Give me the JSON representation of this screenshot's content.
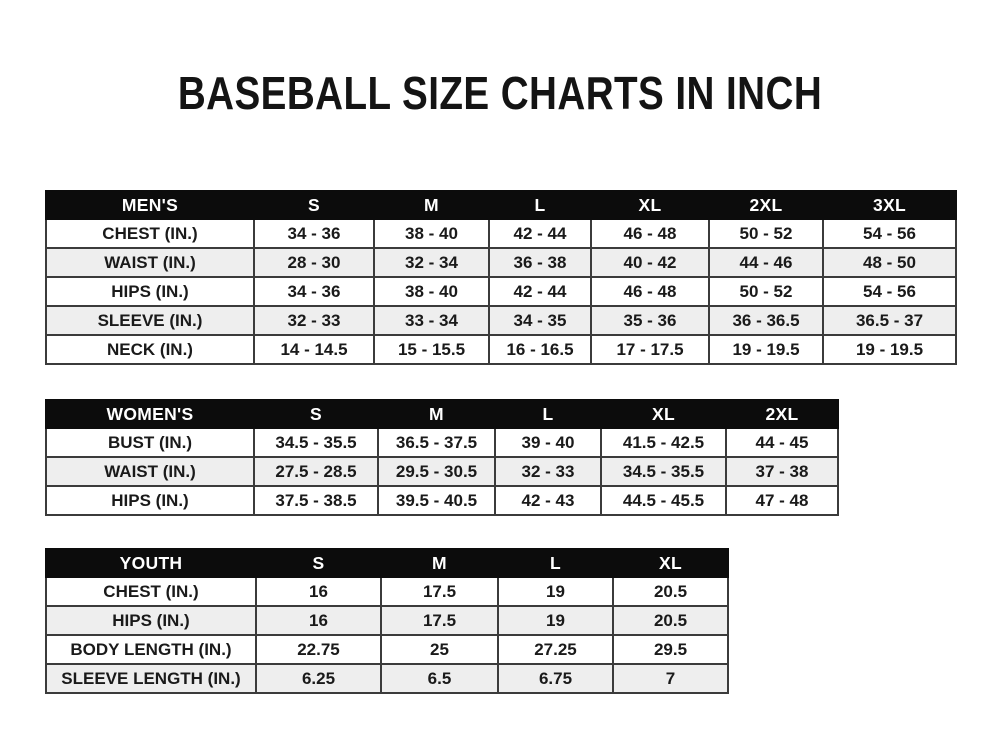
{
  "title": "BASEBALL SIZE CHARTS IN INCH",
  "colors": {
    "page_background": "#ffffff",
    "header_bg": "#0c0c0c",
    "header_text": "#ffffff",
    "row_bg": "#ffffff",
    "row_alt_bg": "#eeeeee",
    "border": "#3b3b3b",
    "text": "#1a1a1a"
  },
  "tables": [
    {
      "name": "mens",
      "header_label": "MEN'S",
      "columns": [
        "S",
        "M",
        "L",
        "XL",
        "2XL",
        "3XL"
      ],
      "rows": [
        {
          "label": "CHEST (IN.)",
          "values": [
            "34 - 36",
            "38 - 40",
            "42 - 44",
            "46 - 48",
            "50 - 52",
            "54 - 56"
          ]
        },
        {
          "label": "WAIST (IN.)",
          "values": [
            "28 - 30",
            "32 - 34",
            "36 - 38",
            "40 - 42",
            "44 - 46",
            "48 - 50"
          ]
        },
        {
          "label": "HIPS (IN.)",
          "values": [
            "34 - 36",
            "38 - 40",
            "42 - 44",
            "46 - 48",
            "50 - 52",
            "54 - 56"
          ]
        },
        {
          "label": "SLEEVE (IN.)",
          "values": [
            "32 - 33",
            "33 - 34",
            "34 - 35",
            "35 - 36",
            "36 - 36.5",
            "36.5 - 37"
          ]
        },
        {
          "label": "NECK (IN.)",
          "values": [
            "14 - 14.5",
            "15 - 15.5",
            "16 - 16.5",
            "17 - 17.5",
            "19 - 19.5",
            "19 - 19.5"
          ]
        }
      ]
    },
    {
      "name": "womens",
      "header_label": "WOMEN'S",
      "columns": [
        "S",
        "M",
        "L",
        "XL",
        "2XL"
      ],
      "rows": [
        {
          "label": "BUST (IN.)",
          "values": [
            "34.5 - 35.5",
            "36.5 - 37.5",
            "39 - 40",
            "41.5 - 42.5",
            "44 - 45"
          ]
        },
        {
          "label": "WAIST (IN.)",
          "values": [
            "27.5 - 28.5",
            "29.5 - 30.5",
            "32 - 33",
            "34.5 - 35.5",
            "37 - 38"
          ]
        },
        {
          "label": "HIPS (IN.)",
          "values": [
            "37.5 - 38.5",
            "39.5 - 40.5",
            "42 - 43",
            "44.5 - 45.5",
            "47 - 48"
          ]
        }
      ]
    },
    {
      "name": "youth",
      "header_label": "YOUTH",
      "columns": [
        "S",
        "M",
        "L",
        "XL"
      ],
      "rows": [
        {
          "label": "CHEST (IN.)",
          "values": [
            "16",
            "17.5",
            "19",
            "20.5"
          ]
        },
        {
          "label": "HIPS (IN.)",
          "values": [
            "16",
            "17.5",
            "19",
            "20.5"
          ]
        },
        {
          "label": "BODY LENGTH (IN.)",
          "values": [
            "22.75",
            "25",
            "27.25",
            "29.5"
          ]
        },
        {
          "label": "SLEEVE LENGTH (IN.)",
          "values": [
            "6.25",
            "6.5",
            "6.75",
            "7"
          ]
        }
      ]
    }
  ]
}
